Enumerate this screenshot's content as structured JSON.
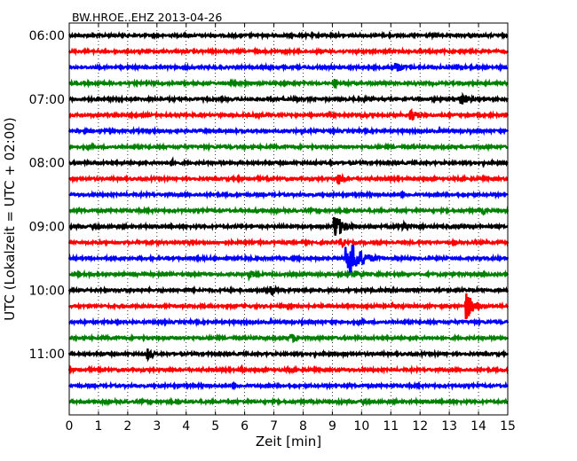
{
  "chart_data": {
    "type": "line",
    "title": "BW.HROE..EHZ 2013-04-26",
    "xlabel": "Zeit  [min]",
    "ylabel": "UTC (Lokalzeit = UTC + 02:00)",
    "xlim": [
      0,
      15
    ],
    "x_ticks": [
      "0",
      "1",
      "2",
      "3",
      "4",
      "5",
      "6",
      "7",
      "8",
      "9",
      "10",
      "11",
      "12",
      "13",
      "14",
      "15"
    ],
    "y_tick_labels": [
      "06:00",
      "07:00",
      "08:00",
      "09:00",
      "10:00",
      "11:00"
    ],
    "trace_start_times": [
      "06:00",
      "06:15",
      "06:30",
      "06:45",
      "07:00",
      "07:15",
      "07:30",
      "07:45",
      "08:00",
      "08:15",
      "08:30",
      "08:45",
      "09:00",
      "09:15",
      "09:30",
      "09:45",
      "10:00",
      "10:15",
      "10:30",
      "10:45",
      "11:00",
      "11:15",
      "11:30",
      "11:45"
    ],
    "trace_colors": [
      "#000000",
      "#ff0000",
      "#0000ff",
      "#008000"
    ],
    "grid": "vertical dotted",
    "events": [
      {
        "trace": 2,
        "minute": 11.2,
        "amp": 0.35,
        "dur": 0.9
      },
      {
        "trace": 2,
        "minute": 13.3,
        "amp": 0.25,
        "dur": 0.6
      },
      {
        "trace": 3,
        "minute": 9.1,
        "amp": 0.3,
        "dur": 0.3
      },
      {
        "trace": 4,
        "minute": 13.4,
        "amp": 0.45,
        "dur": 0.9
      },
      {
        "trace": 5,
        "minute": 10.0,
        "amp": 0.15,
        "dur": 1.2
      },
      {
        "trace": 5,
        "minute": 11.7,
        "amp": 0.4,
        "dur": 0.8
      },
      {
        "trace": 8,
        "minute": 3.5,
        "amp": 0.22,
        "dur": 0.6
      },
      {
        "trace": 8,
        "minute": 9.0,
        "amp": 0.18,
        "dur": 0.6
      },
      {
        "trace": 9,
        "minute": 9.2,
        "amp": 0.38,
        "dur": 0.7
      },
      {
        "trace": 11,
        "minute": 6.4,
        "amp": 0.15,
        "dur": 0.4
      },
      {
        "trace": 11,
        "minute": 14.2,
        "amp": 0.2,
        "dur": 0.4
      },
      {
        "trace": 12,
        "minute": 9.1,
        "amp": 0.8,
        "dur": 0.9
      },
      {
        "trace": 12,
        "minute": 11.4,
        "amp": 0.35,
        "dur": 0.8
      },
      {
        "trace": 13,
        "minute": 9.3,
        "amp": 0.3,
        "dur": 0.7
      },
      {
        "trace": 14,
        "minute": 9.5,
        "amp": 1.45,
        "dur": 1.3
      },
      {
        "trace": 14,
        "minute": 1.8,
        "amp": 0.15,
        "dur": 0.6
      },
      {
        "trace": 15,
        "minute": 6.2,
        "amp": 0.28,
        "dur": 0.5
      },
      {
        "trace": 15,
        "minute": 9.8,
        "amp": 0.3,
        "dur": 0.9
      },
      {
        "trace": 16,
        "minute": 6.9,
        "amp": 0.35,
        "dur": 0.6
      },
      {
        "trace": 17,
        "minute": 13.6,
        "amp": 0.9,
        "dur": 0.7
      },
      {
        "trace": 17,
        "minute": 6.0,
        "amp": 0.15,
        "dur": 0.3
      },
      {
        "trace": 19,
        "minute": 7.6,
        "amp": 0.3,
        "dur": 0.8
      },
      {
        "trace": 20,
        "minute": 2.7,
        "amp": 0.38,
        "dur": 0.5
      },
      {
        "trace": 21,
        "minute": 5.9,
        "amp": 0.22,
        "dur": 0.4
      },
      {
        "trace": 21,
        "minute": 7.5,
        "amp": 0.2,
        "dur": 0.4
      }
    ]
  }
}
